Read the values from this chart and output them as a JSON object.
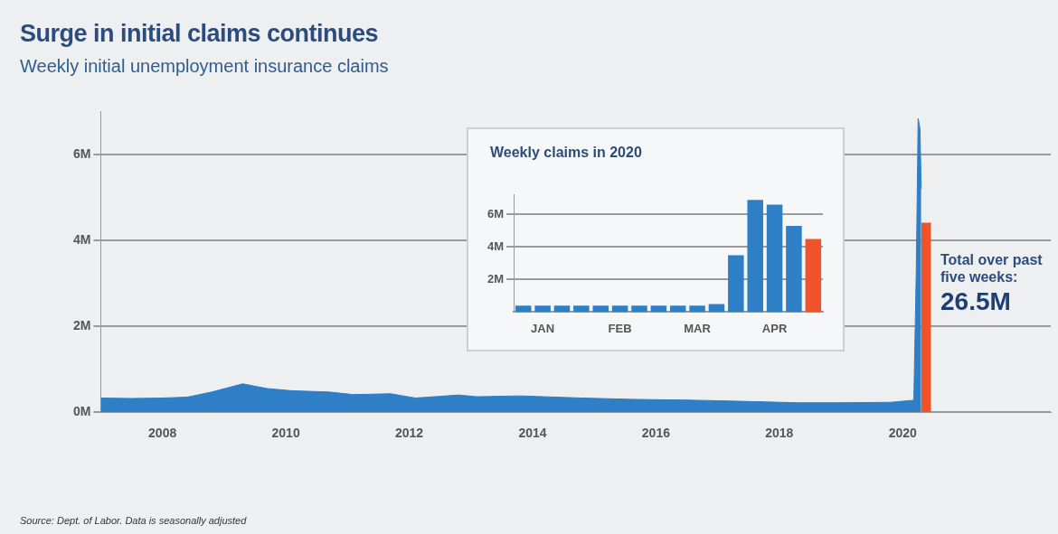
{
  "chart_data": [
    {
      "type": "area",
      "title": "Surge in initial claims continues",
      "subtitle": "Weekly initial unemployment insurance claims",
      "series": [
        {
          "color": "#2e7fc5",
          "x": [
            2007.0,
            2007.5,
            2008.0,
            2008.4,
            2008.8,
            2009.3,
            2009.7,
            2010.1,
            2010.7,
            2011.1,
            2011.7,
            2012.1,
            2012.8,
            2013.1,
            2013.8,
            2014.8,
            2015.6,
            2016.6,
            2017.5,
            2018.3,
            2019.0,
            2019.8,
            2020.18,
            2020.22,
            2020.25,
            2020.28,
            2020.3
          ],
          "values": [
            0.33,
            0.32,
            0.33,
            0.35,
            0.47,
            0.66,
            0.55,
            0.5,
            0.47,
            0.41,
            0.43,
            0.33,
            0.4,
            0.36,
            0.38,
            0.33,
            0.3,
            0.28,
            0.25,
            0.22,
            0.22,
            0.23,
            0.28,
            3.3,
            6.84,
            6.6,
            5.2
          ]
        },
        {
          "color": "#f0532a",
          "x": [
            2020.3,
            2020.46
          ],
          "values": [
            4.4,
            4.4
          ]
        }
      ],
      "xlim": [
        2007,
        2022.4
      ],
      "xticks": [
        2008,
        2010,
        2012,
        2014,
        2016,
        2018,
        2020
      ],
      "ylim": [
        0,
        7
      ],
      "yticks": [
        {
          "value": 0,
          "label": "0M"
        },
        {
          "value": 2,
          "label": "2M"
        },
        {
          "value": 4,
          "label": "4M"
        },
        {
          "value": 6,
          "label": "6M"
        }
      ],
      "grid": "y",
      "annotations": [
        "Total over past five weeks:",
        "26.5M",
        "Source: Dept. of Labor. Data is seasonally adjusted"
      ]
    },
    {
      "type": "bar",
      "title": "Weekly claims in 2020",
      "categories": [
        null,
        "JAN",
        null,
        null,
        null,
        "FEB",
        null,
        null,
        null,
        "MAR",
        null,
        null,
        null,
        "APR",
        null,
        null
      ],
      "values": [
        0.4,
        0.4,
        0.4,
        0.4,
        0.4,
        0.4,
        0.4,
        0.4,
        0.4,
        0.4,
        0.5,
        3.5,
        6.9,
        6.6,
        5.3,
        4.5
      ],
      "colors": [
        "#2e7fc5",
        "#2e7fc5",
        "#2e7fc5",
        "#2e7fc5",
        "#2e7fc5",
        "#2e7fc5",
        "#2e7fc5",
        "#2e7fc5",
        "#2e7fc5",
        "#2e7fc5",
        "#2e7fc5",
        "#2e7fc5",
        "#2e7fc5",
        "#2e7fc5",
        "#2e7fc5",
        "#f0532a"
      ],
      "ylim": [
        0,
        7.2
      ],
      "yticks": [
        {
          "value": 2,
          "label": "2M"
        },
        {
          "value": 4,
          "label": "4M"
        },
        {
          "value": 6,
          "label": "6M"
        }
      ],
      "grid": "y"
    }
  ]
}
